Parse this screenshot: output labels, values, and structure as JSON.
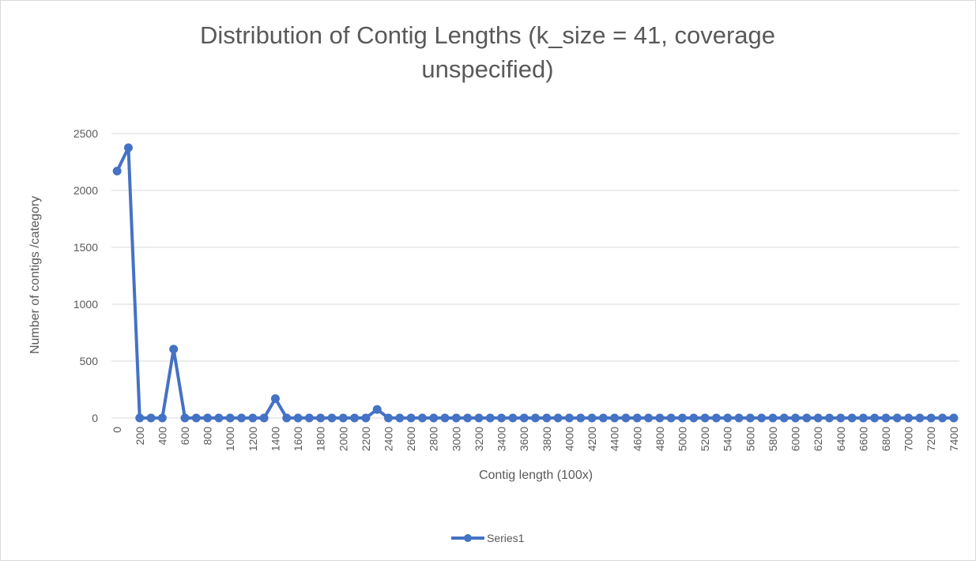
{
  "chart_data": {
    "type": "line",
    "title_lines": [
      "Distribution of Contig Lengths (k_size = 41, coverage",
      "unspecified)"
    ],
    "xlabel": "Contig length (100x)",
    "ylabel": "Number of contigs /category",
    "categories": [
      "0",
      "100",
      "200",
      "300",
      "400",
      "500",
      "600",
      "700",
      "800",
      "900",
      "1000",
      "1100",
      "1200",
      "1300",
      "1400",
      "1500",
      "1600",
      "1700",
      "1800",
      "1900",
      "2000",
      "2100",
      "2200",
      "2300",
      "2400",
      "2500",
      "2600",
      "2700",
      "2800",
      "2900",
      "3000",
      "3100",
      "3200",
      "3300",
      "3400",
      "3500",
      "3600",
      "3700",
      "3800",
      "3900",
      "4000",
      "4100",
      "4200",
      "4300",
      "4400",
      "4500",
      "4600",
      "4700",
      "4800",
      "4900",
      "5000",
      "5100",
      "5200",
      "5300",
      "5400",
      "5500",
      "5600",
      "5700",
      "5800",
      "5900",
      "6000",
      "6100",
      "6200",
      "6300",
      "6400",
      "6500",
      "6600",
      "6700",
      "6800",
      "6900",
      "7000",
      "7100",
      "7200",
      "7300",
      "7400"
    ],
    "tick_label_step": 2,
    "yticks": [
      "0",
      "500",
      "1000",
      "1500",
      "2000",
      "2500"
    ],
    "ylim": [
      0,
      2500
    ],
    "grid": true,
    "legend_position": "bottom",
    "series": [
      {
        "name": "Series1",
        "color": "#4472C4",
        "values": [
          2170,
          2375,
          0,
          0,
          0,
          605,
          0,
          0,
          0,
          0,
          0,
          0,
          0,
          0,
          170,
          0,
          0,
          0,
          0,
          0,
          0,
          0,
          0,
          75,
          0,
          0,
          0,
          0,
          0,
          0,
          0,
          0,
          0,
          0,
          0,
          0,
          0,
          0,
          0,
          0,
          0,
          0,
          0,
          0,
          0,
          0,
          0,
          0,
          0,
          0,
          0,
          0,
          0,
          0,
          0,
          0,
          0,
          0,
          0,
          0,
          0,
          0,
          0,
          0,
          0,
          0,
          0,
          0,
          0,
          0,
          0,
          0,
          0,
          0,
          0
        ]
      }
    ]
  }
}
